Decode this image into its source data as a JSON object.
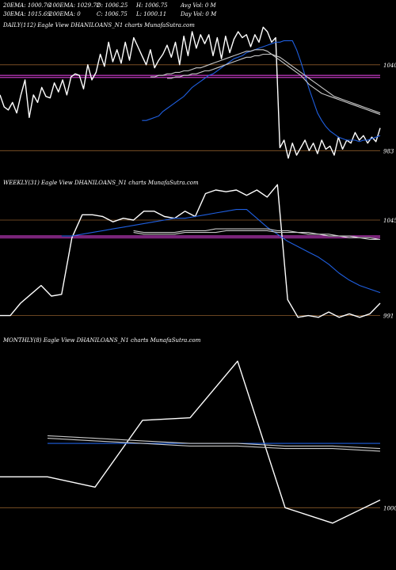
{
  "header": {
    "row1": [
      "20EMA: 1000.76",
      "100EMA: 1029.72",
      "O: 1006.25",
      "H: 1006.75",
      "Avg Vol: 0  M"
    ],
    "row2": [
      "30EMA: 1015.69",
      "200EMA: 0",
      "C: 1006.75",
      "L: 1000.11",
      "Day Vol: 0  M"
    ]
  },
  "colors": {
    "background": "#000000",
    "price": "#ffffff",
    "ema_fast": "#1f5fe0",
    "ema_slow": "#c8c8c8",
    "ref_magenta": "#d63fd6",
    "ref_brown": "#8b5a2b"
  },
  "chart_data": [
    {
      "type": "line",
      "label": "DAILY(112) Eagle  View  DHANILOANS_N1 charts MunafaSutra.com",
      "yticks": [
        "1040",
        "983"
      ],
      "ylim": [
        970,
        1062
      ],
      "tick_values": [
        1040,
        983
      ],
      "horizontal_lines": [
        {
          "value": 1040,
          "color": "#8b5a2b"
        },
        {
          "value": 1033,
          "color": "#d63fd6"
        },
        {
          "value": 1031.6,
          "color": "#d63fd6"
        },
        {
          "value": 983,
          "color": "#8b5a2b"
        }
      ],
      "series": [
        {
          "color": "#ffffff",
          "values": [
            1020,
            1012,
            1010,
            1015,
            1008,
            1020,
            1030,
            1005,
            1020,
            1015,
            1025,
            1019,
            1018,
            1028,
            1022,
            1030,
            1020,
            1032,
            1034,
            1033,
            1024,
            1040,
            1030,
            1035,
            1047,
            1039,
            1055,
            1042,
            1050,
            1041,
            1055,
            1043,
            1058,
            1052,
            1046,
            1040,
            1050,
            1038,
            1043,
            1047,
            1053,
            1045,
            1055,
            1040,
            1059,
            1046,
            1062,
            1051,
            1060,
            1054,
            1060,
            1046,
            1058,
            1044,
            1059,
            1048,
            1057,
            1062,
            1058,
            1060,
            1052,
            1060,
            1055,
            1065,
            1062,
            1055,
            1058,
            985,
            990,
            978,
            988,
            980,
            985,
            990,
            983,
            988,
            981,
            990,
            984,
            986,
            980,
            992,
            984,
            990,
            988,
            995,
            990,
            993,
            988,
            992,
            989,
            998
          ]
        },
        {
          "color": "#1f5fe0",
          "values": [
            1003,
            1003,
            1004,
            1005,
            1006,
            1009,
            1011,
            1013,
            1015,
            1017,
            1019,
            1022,
            1025,
            1027,
            1029,
            1031,
            1033,
            1034,
            1036,
            1038,
            1040,
            1042,
            1044,
            1045,
            1046,
            1048,
            1049,
            1050,
            1051,
            1052,
            1053,
            1054,
            1055,
            1055,
            1056,
            1056,
            1056,
            1050,
            1042,
            1033,
            1024,
            1016,
            1008,
            1003,
            999,
            996,
            994,
            992,
            991,
            990,
            990,
            990,
            989,
            990,
            990,
            991,
            992,
            993
          ]
        },
        {
          "color": "#c8c8c8",
          "values": [
            1032,
            1032,
            1033,
            1033,
            1034,
            1034,
            1035,
            1035,
            1036,
            1036,
            1037,
            1038,
            1038,
            1039,
            1040,
            1041,
            1042,
            1043,
            1044,
            1045,
            1046,
            1047,
            1048,
            1049,
            1049,
            1050,
            1050,
            1050,
            1049,
            1047,
            1045,
            1043,
            1041,
            1039,
            1037,
            1035,
            1033,
            1030,
            1027,
            1025,
            1023,
            1021,
            1020,
            1019,
            1018,
            1017,
            1016,
            1015,
            1014,
            1013,
            1012,
            1011,
            1010,
            1009,
            1008,
            1007
          ]
        },
        {
          "color": "#c8c8c8",
          "values": [
            1031,
            1031,
            1032,
            1032,
            1033,
            1033,
            1034,
            1034,
            1035,
            1036,
            1036,
            1037,
            1038,
            1039,
            1040,
            1041,
            1042,
            1043,
            1044,
            1045,
            1045,
            1046,
            1046,
            1047,
            1047,
            1047,
            1046,
            1045,
            1043,
            1041,
            1039,
            1037,
            1035,
            1033,
            1031,
            1029,
            1027,
            1025,
            1023,
            1021,
            1019,
            1018,
            1017,
            1016,
            1015,
            1014,
            1013,
            1012,
            1011,
            1010,
            1009,
            1008
          ]
        }
      ]
    },
    {
      "type": "line",
      "label": "WEEKLY(31) Eagle  View  DHANILOANS_N1 charts MunafaSutra.com",
      "yticks": [
        "1045",
        "991"
      ],
      "ylim": [
        985,
        1062
      ],
      "tick_values": [
        1045,
        991
      ],
      "horizontal_lines": [
        {
          "value": 1045,
          "color": "#8b5a2b"
        },
        {
          "value": 1036,
          "color": "#d63fd6"
        },
        {
          "value": 1035,
          "color": "#d63fd6"
        },
        {
          "value": 991,
          "color": "#8b5a2b"
        }
      ],
      "series": [
        {
          "color": "#ffffff",
          "values": [
            991,
            991,
            998,
            1003,
            1008,
            1002,
            1003,
            1035,
            1048,
            1048,
            1047,
            1044,
            1046,
            1045,
            1050,
            1050,
            1047,
            1046,
            1050,
            1047,
            1060,
            1062,
            1061,
            1062,
            1059,
            1062,
            1058,
            1065,
            1000,
            990,
            991,
            990,
            993,
            990,
            992,
            990,
            992,
            998
          ]
        },
        {
          "color": "#1f5fe0",
          "values": [
            1036,
            1036,
            1037,
            1038,
            1039,
            1040,
            1041,
            1042,
            1043,
            1044,
            1045,
            1046,
            1046,
            1047,
            1048,
            1049,
            1050,
            1051,
            1051,
            1046,
            1041,
            1037,
            1033,
            1030,
            1027,
            1024,
            1020,
            1015,
            1011,
            1008,
            1006,
            1004
          ]
        },
        {
          "color": "#c8c8c8",
          "values": [
            1039,
            1038,
            1038,
            1038,
            1038,
            1039,
            1039,
            1039,
            1040,
            1040,
            1040,
            1040,
            1040,
            1040,
            1039,
            1039,
            1038,
            1038,
            1037,
            1037,
            1036,
            1036,
            1035,
            1035,
            1034
          ]
        },
        {
          "color": "#c8c8c8",
          "values": [
            1038,
            1037,
            1037,
            1037,
            1037,
            1038,
            1038,
            1038,
            1038,
            1039,
            1039,
            1039,
            1039,
            1039,
            1038,
            1038,
            1038,
            1037,
            1037,
            1036,
            1036,
            1035,
            1035,
            1034,
            1034
          ]
        }
      ]
    },
    {
      "type": "line",
      "label": "MONTHLY(8) Eagle  View  DHANILOANS_N1 charts MunafaSutra.com",
      "yticks": [
        "1000"
      ],
      "ylim": [
        985,
        1062
      ],
      "tick_values": [
        1000
      ],
      "horizontal_lines": [
        {
          "value": 1000,
          "color": "#8b5a2b"
        }
      ],
      "series": [
        {
          "color": "#ffffff",
          "values": [
            1012,
            1012,
            1008,
            1034,
            1035,
            1057,
            1000,
            994,
            1003
          ]
        },
        {
          "color": "#1f5fe0",
          "values": [
            1025,
            1025,
            1025,
            1025,
            1025,
            1025,
            1025,
            1025
          ]
        },
        {
          "color": "#c8c8c8",
          "values": [
            1028,
            1027,
            1026,
            1025,
            1025,
            1024,
            1024,
            1023
          ]
        },
        {
          "color": "#c8c8c8",
          "values": [
            1027,
            1026,
            1025,
            1024,
            1024,
            1023,
            1023,
            1022
          ]
        }
      ]
    }
  ]
}
